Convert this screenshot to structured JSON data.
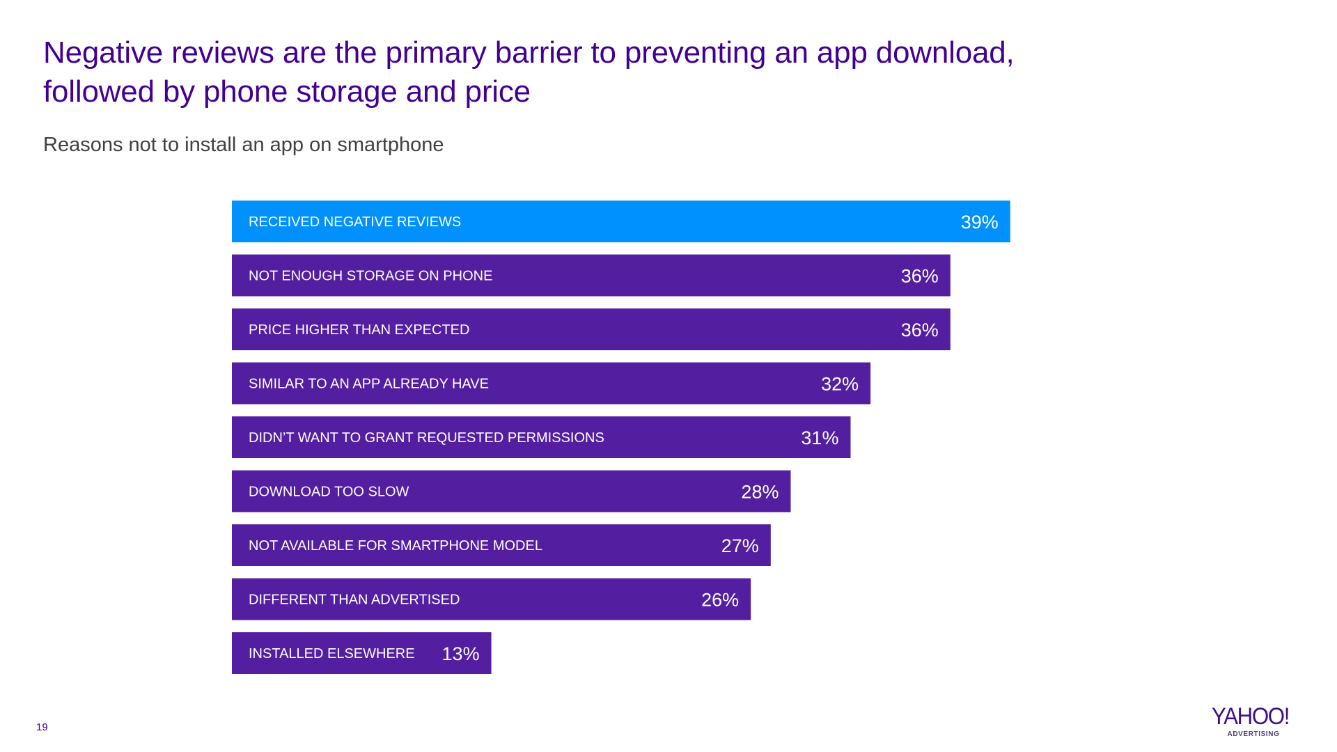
{
  "slide": {
    "title_lines": [
      "Negative reviews are the primary barrier to preventing an app download,",
      "followed by phone storage and price"
    ],
    "subtitle": "Reasons not to install an app on smartphone",
    "page_number": "19"
  },
  "logo": {
    "brand": "YAHOO!",
    "sub": "ADVERTISING"
  },
  "colors": {
    "title": "#410093",
    "highlight_bar": "#0091FF",
    "default_bar": "#531EA0",
    "subtitle": "#404040"
  },
  "chart_data": {
    "type": "bar",
    "orientation": "horizontal",
    "title": "Reasons not to install an app on smartphone",
    "xlabel": "",
    "ylabel": "",
    "xlim": [
      0,
      40
    ],
    "grid": false,
    "legend": "none",
    "value_suffix": "%",
    "highlight_index": 0,
    "categories": [
      "RECEIVED NEGATIVE REVIEWS",
      "NOT ENOUGH STORAGE ON PHONE",
      "PRICE HIGHER THAN EXPECTED",
      "SIMILAR TO AN APP ALREADY HAVE",
      "DIDN’T WANT TO GRANT REQUESTED PERMISSIONS",
      "DOWNLOAD TOO SLOW",
      "NOT AVAILABLE FOR SMARTPHONE MODEL",
      "DIFFERENT THAN ADVERTISED",
      "INSTALLED ELSEWHERE"
    ],
    "values": [
      39,
      36,
      36,
      32,
      31,
      28,
      27,
      26,
      13
    ],
    "value_labels": [
      "39%",
      "36%",
      "36%",
      "32%",
      "31%",
      "28%",
      "27%",
      "26%",
      "13%"
    ]
  }
}
